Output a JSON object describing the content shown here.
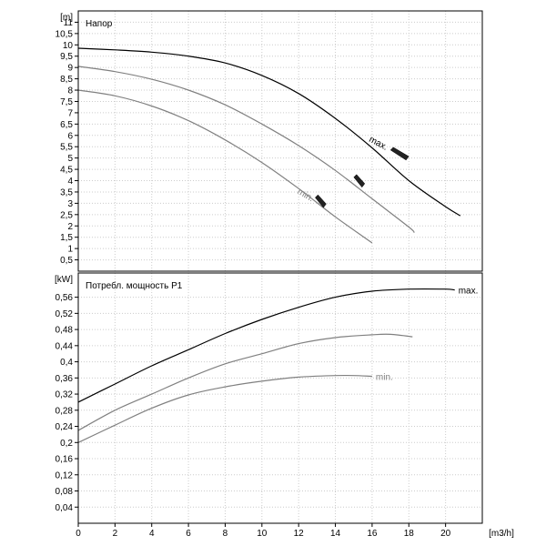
{
  "chart_data": [
    {
      "type": "line",
      "title": "Напор",
      "ylabel": "[m]",
      "xlim": [
        0,
        22
      ],
      "ylim": [
        0,
        11.5
      ],
      "x_ticks": [
        0,
        2,
        4,
        6,
        8,
        10,
        12,
        14,
        16,
        18,
        20
      ],
      "y_ticks": [
        {
          "v": 0.5,
          "label": "0,5"
        },
        {
          "v": 1,
          "label": "1"
        },
        {
          "v": 1.5,
          "label": "1,5"
        },
        {
          "v": 2,
          "label": "2"
        },
        {
          "v": 2.5,
          "label": "2,5"
        },
        {
          "v": 3,
          "label": "3"
        },
        {
          "v": 3.5,
          "label": "3,5"
        },
        {
          "v": 4,
          "label": "4"
        },
        {
          "v": 4.5,
          "label": "4,5"
        },
        {
          "v": 5,
          "label": "5"
        },
        {
          "v": 5.5,
          "label": "5,5"
        },
        {
          "v": 6,
          "label": "6"
        },
        {
          "v": 6.5,
          "label": "6,5"
        },
        {
          "v": 7,
          "label": "7"
        },
        {
          "v": 7.5,
          "label": "7,5"
        },
        {
          "v": 8,
          "label": "8"
        },
        {
          "v": 8.5,
          "label": "8,5"
        },
        {
          "v": 9,
          "label": "9"
        },
        {
          "v": 9.5,
          "label": "9,5"
        },
        {
          "v": 10,
          "label": "10"
        },
        {
          "v": 10.5,
          "label": "10,5"
        },
        {
          "v": 11,
          "label": "11"
        }
      ],
      "grid": true,
      "series": [
        {
          "name": "max.",
          "color": "#000000",
          "x": [
            0,
            2,
            4,
            6,
            8,
            10,
            12,
            14,
            16,
            18,
            20,
            20.8
          ],
          "y": [
            9.85,
            9.78,
            9.68,
            9.5,
            9.2,
            8.65,
            7.85,
            6.75,
            5.45,
            4.0,
            2.85,
            2.45
          ]
        },
        {
          "name": "",
          "color": "#808080",
          "x": [
            0,
            2,
            4,
            6,
            8,
            10,
            12,
            14,
            16,
            18,
            18.3
          ],
          "y": [
            9.05,
            8.82,
            8.48,
            8.0,
            7.35,
            6.5,
            5.55,
            4.45,
            3.2,
            1.95,
            1.7
          ]
        },
        {
          "name": "min.",
          "color": "#808080",
          "x": [
            0,
            2,
            4,
            6,
            8,
            10,
            12,
            14,
            16
          ],
          "y": [
            8.0,
            7.75,
            7.3,
            6.65,
            5.8,
            4.8,
            3.65,
            2.4,
            1.25
          ]
        }
      ],
      "markers": [
        {
          "x": 13.2,
          "y": 3.05
        },
        {
          "x": 15.3,
          "y": 3.95
        },
        {
          "x": 17.5,
          "y": 5.15
        }
      ]
    },
    {
      "type": "line",
      "title": "Потребл. мощность P1",
      "ylabel": "[kW]",
      "xlabel": "[m3/h]",
      "xlim": [
        0,
        22
      ],
      "ylim": [
        0,
        0.62
      ],
      "x_ticks": [
        0,
        2,
        4,
        6,
        8,
        10,
        12,
        14,
        16,
        18,
        20
      ],
      "y_ticks": [
        {
          "v": 0.04,
          "label": "0,04"
        },
        {
          "v": 0.08,
          "label": "0,08"
        },
        {
          "v": 0.12,
          "label": "0,12"
        },
        {
          "v": 0.16,
          "label": "0,16"
        },
        {
          "v": 0.2,
          "label": "0,2"
        },
        {
          "v": 0.24,
          "label": "0,24"
        },
        {
          "v": 0.28,
          "label": "0,28"
        },
        {
          "v": 0.32,
          "label": "0,32"
        },
        {
          "v": 0.36,
          "label": "0,36"
        },
        {
          "v": 0.4,
          "label": "0,4"
        },
        {
          "v": 0.44,
          "label": "0,44"
        },
        {
          "v": 0.48,
          "label": "0,48"
        },
        {
          "v": 0.52,
          "label": "0,52"
        },
        {
          "v": 0.56,
          "label": "0,56"
        }
      ],
      "grid": true,
      "series": [
        {
          "name": "max.",
          "color": "#000000",
          "x": [
            0,
            2,
            4,
            6,
            8,
            10,
            12,
            14,
            16,
            18,
            20,
            20.5
          ],
          "y": [
            0.3,
            0.345,
            0.39,
            0.43,
            0.47,
            0.505,
            0.535,
            0.56,
            0.575,
            0.58,
            0.58,
            0.578
          ]
        },
        {
          "name": "",
          "color": "#808080",
          "x": [
            0,
            2,
            4,
            6,
            8,
            10,
            12,
            14,
            16,
            17,
            18.2
          ],
          "y": [
            0.23,
            0.28,
            0.32,
            0.36,
            0.395,
            0.42,
            0.445,
            0.46,
            0.467,
            0.468,
            0.462
          ]
        },
        {
          "name": "min.",
          "color": "#808080",
          "x": [
            0,
            2,
            4,
            6,
            8,
            10,
            12,
            14,
            15,
            16
          ],
          "y": [
            0.2,
            0.243,
            0.285,
            0.318,
            0.338,
            0.352,
            0.362,
            0.366,
            0.366,
            0.364
          ]
        }
      ]
    }
  ]
}
